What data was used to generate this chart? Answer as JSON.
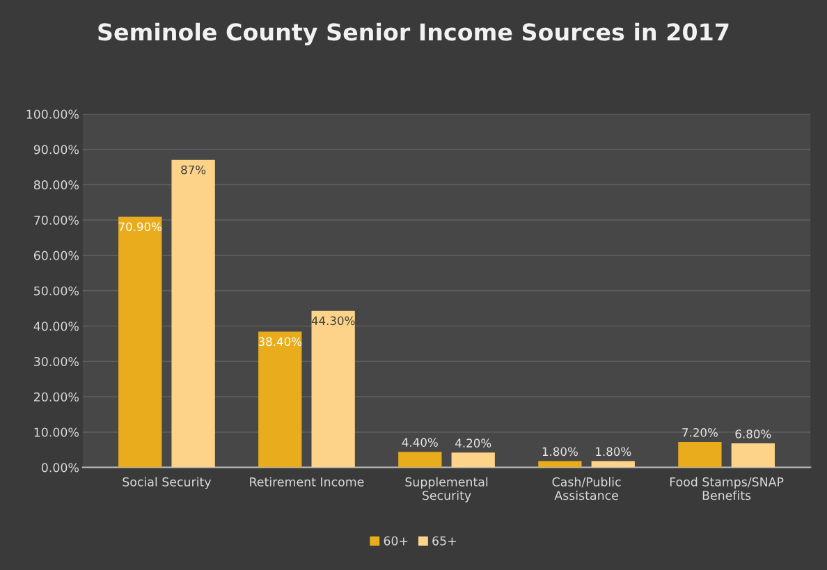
{
  "chart_data": {
    "type": "bar",
    "title": "Seminole County Senior Income Sources in 2017",
    "categories": [
      "Social Security",
      "Retirement Income",
      "Supplemental\nSecurity",
      "Cash/Public\nAssistance",
      "Food Stamps/SNAP\nBenefits"
    ],
    "series": [
      {
        "name": "60+",
        "color": "#e8ac1c",
        "values": [
          70.9,
          38.4,
          4.4,
          1.8,
          7.2
        ],
        "value_labels": [
          "70.90%",
          "38.40%",
          "4.40%",
          "1.80%",
          "7.20%"
        ]
      },
      {
        "name": "65+",
        "color": "#fcd388",
        "values": [
          87,
          44.3,
          4.2,
          1.8,
          6.8
        ],
        "value_labels": [
          "87%",
          "44.30%",
          "4.20%",
          "1.80%",
          "6.80%"
        ]
      }
    ],
    "ylim": [
      0,
      100
    ],
    "yticks": [
      {
        "value": 0,
        "label": "0.00%"
      },
      {
        "value": 10,
        "label": "10.00%"
      },
      {
        "value": 20,
        "label": "20.00%"
      },
      {
        "value": 30,
        "label": "30.00%"
      },
      {
        "value": 40,
        "label": "40.00%"
      },
      {
        "value": 50,
        "label": "50.00%"
      },
      {
        "value": 60,
        "label": "60.00%"
      },
      {
        "value": 70,
        "label": "70.00%"
      },
      {
        "value": 80,
        "label": "80.00%"
      },
      {
        "value": 90,
        "label": "90.00%"
      },
      {
        "value": 100,
        "label": "100.00%"
      }
    ],
    "grid": "y",
    "legend": "bottom"
  }
}
